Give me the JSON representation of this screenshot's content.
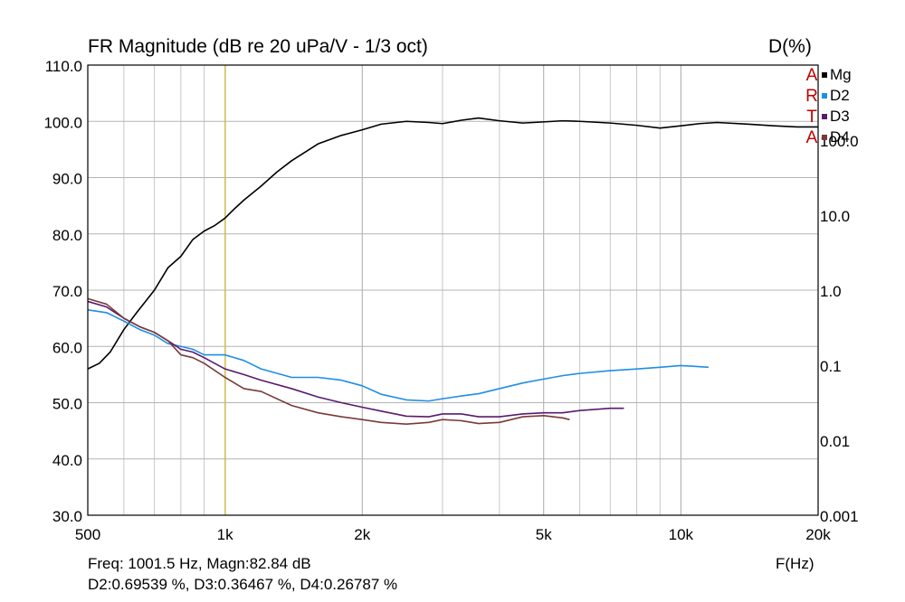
{
  "title": "FR Magnitude (dB re 20 uPa/V - 1/3 oct)",
  "right_axis_title": "D(%)",
  "x_unit_label": "F(Hz)",
  "readout": {
    "line1": "Freq: 1001.5 Hz, Magn:82.84 dB",
    "line2": "D2:0.69539 %, D3:0.36467 %, D4:0.26787 %"
  },
  "legend": [
    {
      "arta": "A",
      "name": "Mg",
      "color": "#000000"
    },
    {
      "arta": "R",
      "name": "D2",
      "color": "#1e8ee6"
    },
    {
      "arta": "T",
      "name": "D3",
      "color": "#5a1a6e"
    },
    {
      "arta": "A",
      "name": "D4",
      "color": "#7a3a3a"
    }
  ],
  "chart_data": {
    "type": "line",
    "x_scale": "log",
    "xlim": [
      500,
      20000
    ],
    "ylim": [
      30,
      110
    ],
    "y2_scale": "log",
    "y2lim": [
      0.001,
      1000
    ],
    "grid": true,
    "x_ticks": [
      {
        "value": 500,
        "label": "500"
      },
      {
        "value": 1000,
        "label": "1k"
      },
      {
        "value": 2000,
        "label": "2k"
      },
      {
        "value": 5000,
        "label": "5k"
      },
      {
        "value": 10000,
        "label": "10k"
      },
      {
        "value": 20000,
        "label": "20k"
      }
    ],
    "y_ticks": [
      {
        "value": 30,
        "label": "30.0"
      },
      {
        "value": 40,
        "label": "40.0"
      },
      {
        "value": 50,
        "label": "50.0"
      },
      {
        "value": 60,
        "label": "60.0"
      },
      {
        "value": 70,
        "label": "70.0"
      },
      {
        "value": 80,
        "label": "80.0"
      },
      {
        "value": 90,
        "label": "90.0"
      },
      {
        "value": 100,
        "label": "100.0"
      },
      {
        "value": 110,
        "label": "110.0"
      }
    ],
    "y2_ticks": [
      {
        "value": 0.001,
        "label": "0.001"
      },
      {
        "value": 0.01,
        "label": "0.01"
      },
      {
        "value": 0.1,
        "label": "0.1"
      },
      {
        "value": 1,
        "label": "1.0"
      },
      {
        "value": 10,
        "label": "10.0"
      },
      {
        "value": 100,
        "label": "100.0"
      }
    ],
    "cursor": {
      "x": 1001.5,
      "color": "#d4c23a"
    },
    "series": [
      {
        "name": "Mg",
        "axis": "left",
        "color": "#000000",
        "x": [
          500,
          530,
          560,
          600,
          640,
          700,
          750,
          800,
          850,
          900,
          950,
          1000,
          1050,
          1100,
          1200,
          1300,
          1400,
          1600,
          1800,
          2000,
          2200,
          2500,
          2800,
          3000,
          3300,
          3600,
          4000,
          4500,
          5000,
          5500,
          6000,
          7000,
          8000,
          9000,
          10000,
          11000,
          12000,
          14000,
          16000,
          18000,
          20000
        ],
        "values": [
          56,
          57,
          59,
          63,
          66,
          70,
          74,
          76,
          79,
          80.5,
          81.5,
          82.8,
          84.5,
          86,
          88.5,
          91,
          93,
          96,
          97.5,
          98.5,
          99.5,
          100,
          99.8,
          99.6,
          100.2,
          100.6,
          100.1,
          99.7,
          99.9,
          100.1,
          100,
          99.7,
          99.3,
          98.8,
          99.2,
          99.6,
          99.8,
          99.5,
          99.2,
          99.0,
          99.0
        ]
      },
      {
        "name": "D2",
        "axis": "left",
        "color": "#1e8ee6",
        "x": [
          500,
          550,
          600,
          650,
          700,
          750,
          800,
          850,
          900,
          1000,
          1100,
          1200,
          1400,
          1600,
          1800,
          2000,
          2200,
          2500,
          2800,
          3000,
          3300,
          3600,
          4000,
          4500,
          5000,
          5500,
          6000,
          7000,
          8000,
          9000,
          10000,
          11000,
          11500
        ],
        "values": [
          66.5,
          66,
          64.5,
          63,
          62,
          60.5,
          60,
          59.5,
          58.5,
          58.5,
          57.5,
          56,
          54.5,
          54.5,
          54,
          53,
          51.5,
          50.5,
          50.3,
          50.7,
          51.2,
          51.6,
          52.5,
          53.5,
          54.2,
          54.8,
          55.2,
          55.7,
          56,
          56.3,
          56.6,
          56.4,
          56.3
        ]
      },
      {
        "name": "D3",
        "axis": "left",
        "color": "#5a1a6e",
        "x": [
          500,
          550,
          600,
          650,
          700,
          750,
          800,
          850,
          900,
          1000,
          1100,
          1200,
          1400,
          1600,
          1800,
          2000,
          2200,
          2500,
          2800,
          3000,
          3300,
          3600,
          4000,
          4500,
          5000,
          5500,
          6000,
          7000,
          7500
        ],
        "values": [
          68,
          67,
          65,
          63.5,
          62.5,
          61,
          59.5,
          59,
          58,
          56,
          55,
          54,
          52.5,
          51,
          50,
          49.2,
          48.5,
          47.6,
          47.5,
          48,
          48,
          47.5,
          47.5,
          48,
          48.2,
          48.2,
          48.6,
          49,
          49
        ]
      },
      {
        "name": "D4",
        "axis": "left",
        "color": "#7a3a3a",
        "x": [
          500,
          550,
          600,
          650,
          700,
          750,
          800,
          850,
          900,
          1000,
          1100,
          1200,
          1400,
          1600,
          1800,
          2000,
          2200,
          2500,
          2800,
          3000,
          3300,
          3600,
          4000,
          4500,
          5000,
          5500,
          5700
        ],
        "values": [
          68.5,
          67.5,
          65,
          63.5,
          62.5,
          61,
          58.5,
          58,
          57,
          54.5,
          52.5,
          52,
          49.5,
          48.2,
          47.5,
          47,
          46.5,
          46.2,
          46.5,
          47,
          46.8,
          46.3,
          46.5,
          47.5,
          47.7,
          47.3,
          47
        ]
      }
    ]
  }
}
